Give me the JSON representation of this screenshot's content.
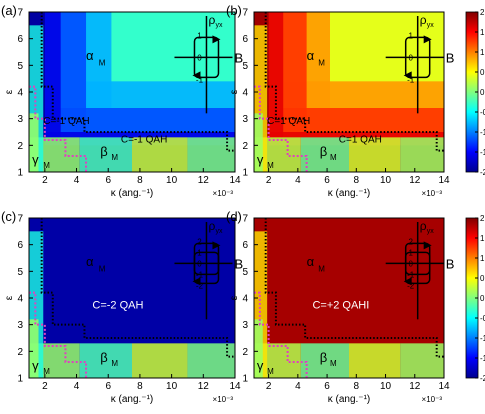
{
  "chart_data": [
    {
      "type": "heatmap",
      "panel_label": "(a)",
      "xlabel": "κ (ang.⁻¹)",
      "xlabel_exp": "×10⁻³",
      "ylabel": "ε",
      "xticks": [
        "2",
        "4",
        "6",
        "8",
        "10",
        "12",
        "14"
      ],
      "yticks": [
        "1",
        "2",
        "3",
        "4",
        "5",
        "6",
        "7"
      ],
      "xlim": [
        1,
        14
      ],
      "ylim": [
        1,
        7
      ],
      "background_value": -0.3,
      "bands": [
        {
          "x_edge": 6.2,
          "y_edge": 4.4,
          "value": -0.8
        },
        {
          "x_edge": 4.6,
          "y_edge": 3.4,
          "value": -1.2
        },
        {
          "x_edge": 3.0,
          "y_edge": 2.5,
          "value": -1.6
        },
        {
          "x_edge": 2.0,
          "y_edge": 2.0,
          "value": -1.9
        }
      ],
      "phase_labels": {
        "alpha": "α",
        "alpha_sub": "M",
        "beta": "β",
        "beta_sub": "M",
        "gamma": "γ",
        "gamma_sub": "M"
      },
      "region_labels": [
        "C=-1 QAH",
        "C=-1 QAH"
      ],
      "inset": {
        "y_label": "ρ",
        "y_sub": "yx",
        "x_label": "B",
        "ticks": [
          "1",
          "0",
          "-1"
        ],
        "loops": 1
      }
    },
    {
      "type": "heatmap",
      "panel_label": "(b)",
      "xlabel": "κ (ang.⁻¹)",
      "xlabel_exp": "×10⁻³",
      "ylabel": "ε",
      "xticks": [
        "2",
        "4",
        "6",
        "8",
        "10",
        "12",
        "14"
      ],
      "yticks": [
        "1",
        "2",
        "3",
        "4",
        "5",
        "6",
        "7"
      ],
      "xlim": [
        1,
        14
      ],
      "ylim": [
        1,
        7
      ],
      "background_value": 0.4,
      "bands": [
        {
          "x_edge": 6.2,
          "y_edge": 4.4,
          "value": 0.9
        },
        {
          "x_edge": 4.6,
          "y_edge": 3.4,
          "value": 1.3
        },
        {
          "x_edge": 3.0,
          "y_edge": 2.5,
          "value": 1.6
        },
        {
          "x_edge": 2.0,
          "y_edge": 2.0,
          "value": 1.9
        }
      ],
      "phase_labels": {
        "alpha": "α",
        "alpha_sub": "M",
        "beta": "β",
        "beta_sub": "M",
        "gamma": "γ",
        "gamma_sub": "M"
      },
      "region_labels": [
        "C=1 QAH",
        "C=1 QAH"
      ],
      "inset": {
        "y_label": "ρ",
        "y_sub": "yx",
        "x_label": "B",
        "ticks": [
          "1",
          "0",
          "-1"
        ],
        "loops": 1
      }
    },
    {
      "type": "heatmap",
      "panel_label": "(c)",
      "xlabel": "κ (ang.⁻¹)",
      "xlabel_exp": "×10⁻³",
      "ylabel": "ε",
      "xticks": [
        "2",
        "4",
        "6",
        "8",
        "10",
        "12",
        "14"
      ],
      "yticks": [
        "1",
        "2",
        "3",
        "4",
        "5",
        "6",
        "7"
      ],
      "xlim": [
        1,
        14
      ],
      "ylim": [
        1,
        7
      ],
      "background_value": -1.85,
      "bands": [],
      "phase_labels": {
        "alpha": "α",
        "alpha_sub": "M",
        "beta": "β",
        "beta_sub": "M",
        "gamma": "γ",
        "gamma_sub": "M"
      },
      "region_labels": [
        "C=-2 QAH"
      ],
      "inset": {
        "y_label": "ρ",
        "y_sub": "yx",
        "x_label": "B",
        "ticks": [
          "2",
          "1",
          "0",
          "-1",
          "-2"
        ],
        "loops": 2
      }
    },
    {
      "type": "heatmap",
      "panel_label": "(d)",
      "xlabel": "κ (ang.⁻¹)",
      "xlabel_exp": "×10⁻³",
      "ylabel": "ε",
      "xticks": [
        "2",
        "4",
        "6",
        "8",
        "10",
        "12",
        "14"
      ],
      "yticks": [
        "1",
        "2",
        "3",
        "4",
        "5",
        "6",
        "7"
      ],
      "xlim": [
        1,
        14
      ],
      "ylim": [
        1,
        7
      ],
      "background_value": 1.85,
      "bands": [],
      "phase_labels": {
        "alpha": "α",
        "alpha_sub": "M",
        "beta": "β",
        "beta_sub": "M",
        "gamma": "γ",
        "gamma_sub": "M"
      },
      "region_labels": [
        "C=+2 QAHI"
      ],
      "inset": {
        "y_label": "ρ",
        "y_sub": "yx",
        "x_label": "B",
        "ticks": [
          "2",
          "1",
          "0",
          "-1",
          "-2"
        ],
        "loops": 2
      }
    }
  ],
  "colorbars": [
    {
      "ticks": [
        "2",
        "1.5",
        "1",
        "0.5",
        "0",
        "-0.5",
        "-1",
        "-1.5",
        "-2"
      ],
      "range": [
        -2,
        2
      ],
      "colormap": "jet"
    },
    {
      "ticks": [
        "2",
        "1.5",
        "1",
        "0.5",
        "0",
        "-0.5",
        "-1",
        "-1.5",
        "-2"
      ],
      "range": [
        -2,
        2
      ],
      "colormap": "jet"
    }
  ]
}
